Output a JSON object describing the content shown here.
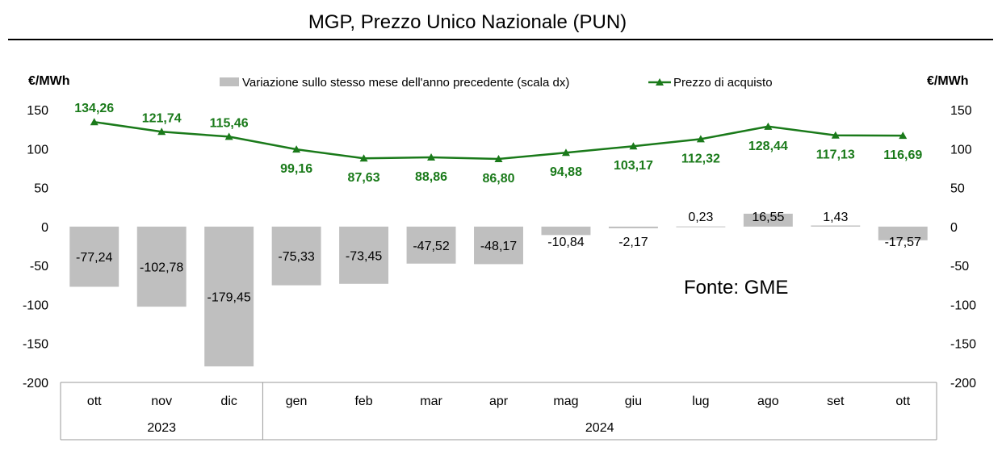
{
  "chart_data": {
    "type": "bar",
    "title": "MGP, Prezzo Unico Nazionale (PUN)",
    "ylabel_left": "€/MWh",
    "ylabel_right": "€/MWh",
    "ylim": [
      -200,
      150
    ],
    "yticks": [
      150,
      100,
      50,
      0,
      -50,
      -100,
      -150,
      -200
    ],
    "categories": [
      "ott",
      "nov",
      "dic",
      "gen",
      "feb",
      "mar",
      "apr",
      "mag",
      "giu",
      "lug",
      "ago",
      "set",
      "ott"
    ],
    "year_groups": [
      {
        "label": "2023",
        "count": 3
      },
      {
        "label": "2024",
        "count": 10
      }
    ],
    "legend_placement": "top-center",
    "grid": false,
    "source_note": "Fonte: GME",
    "series": [
      {
        "name": "Variazione sullo stesso mese dell'anno precedente (scala dx)",
        "type": "bar",
        "color": "#bfbfbf",
        "values": [
          -77.24,
          -102.78,
          -179.45,
          -75.33,
          -73.45,
          -47.52,
          -48.17,
          -10.84,
          -2.17,
          0.23,
          16.55,
          1.43,
          -17.57
        ],
        "labels": [
          "-77,24",
          "-102,78",
          "-179,45",
          "-75,33",
          "-73,45",
          "-47,52",
          "-48,17",
          "-10,84",
          "-2,17",
          "0,23",
          "16,55",
          "1,43",
          "-17,57"
        ]
      },
      {
        "name": "Prezzo di acquisto",
        "type": "line",
        "marker": "triangle",
        "color": "#1a7a1a",
        "values": [
          134.26,
          121.74,
          115.46,
          99.16,
          87.63,
          88.86,
          86.8,
          94.88,
          103.17,
          112.32,
          128.44,
          117.13,
          116.69
        ],
        "labels": [
          "134,26",
          "121,74",
          "115,46",
          "99,16",
          "87,63",
          "88,86",
          "86,80",
          "94,88",
          "103,17",
          "112,32",
          "128,44",
          "117,13",
          "116,69"
        ]
      }
    ]
  }
}
